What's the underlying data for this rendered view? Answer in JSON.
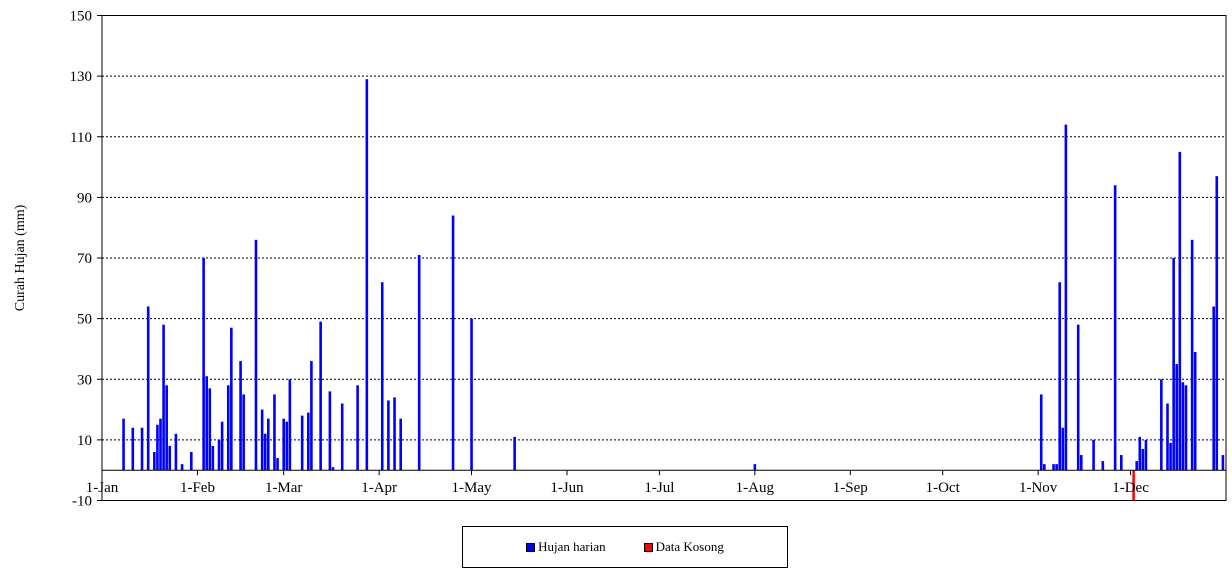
{
  "chart_data": {
    "type": "bar",
    "ylabel": "Curah Hujan (mm)",
    "ylim": [
      -10,
      150
    ],
    "y_ticks": [
      "-10",
      "10",
      "30",
      "50",
      "70",
      "90",
      "110",
      "130",
      "150"
    ],
    "x_ticks": [
      "1-Jan",
      "1-Feb",
      "1-Mar",
      "1-Apr",
      "1-May",
      "1-Jun",
      "1-Jul",
      "1-Aug",
      "1-Sep",
      "1-Oct",
      "1-Nov",
      "1-Dec"
    ],
    "x_unit": "day of year",
    "xlim": [
      1,
      366
    ],
    "gridlines": "horizontal",
    "legend_position": "bottom",
    "series": [
      {
        "name": "Hujan harian",
        "color": "#0000ff",
        "points": [
          [
            8,
            17
          ],
          [
            11,
            14
          ],
          [
            14,
            14
          ],
          [
            16,
            54
          ],
          [
            18,
            6
          ],
          [
            19,
            15
          ],
          [
            20,
            17
          ],
          [
            21,
            48
          ],
          [
            22,
            28
          ],
          [
            23,
            8
          ],
          [
            25,
            12
          ],
          [
            27,
            2
          ],
          [
            30,
            6
          ],
          [
            34,
            70
          ],
          [
            35,
            31
          ],
          [
            36,
            27
          ],
          [
            37,
            8
          ],
          [
            39,
            10
          ],
          [
            40,
            16
          ],
          [
            42,
            28
          ],
          [
            43,
            47
          ],
          [
            46,
            36
          ],
          [
            47,
            25
          ],
          [
            51,
            76
          ],
          [
            53,
            20
          ],
          [
            54,
            12
          ],
          [
            55,
            17
          ],
          [
            57,
            25
          ],
          [
            58,
            4
          ],
          [
            60,
            17
          ],
          [
            61,
            16
          ],
          [
            62,
            30
          ],
          [
            66,
            18
          ],
          [
            68,
            19
          ],
          [
            69,
            36
          ],
          [
            72,
            49
          ],
          [
            75,
            26
          ],
          [
            76,
            1
          ],
          [
            79,
            22
          ],
          [
            84,
            28
          ],
          [
            87,
            129
          ],
          [
            92,
            62
          ],
          [
            94,
            23
          ],
          [
            96,
            24
          ],
          [
            98,
            17
          ],
          [
            104,
            71
          ],
          [
            115,
            84
          ],
          [
            121,
            50
          ],
          [
            135,
            11
          ],
          [
            213,
            2
          ],
          [
            306,
            25
          ],
          [
            307,
            2
          ],
          [
            310,
            2
          ],
          [
            311,
            2
          ],
          [
            312,
            62
          ],
          [
            313,
            14
          ],
          [
            314,
            114
          ],
          [
            318,
            48
          ],
          [
            319,
            5
          ],
          [
            323,
            10
          ],
          [
            326,
            3
          ],
          [
            330,
            94
          ],
          [
            332,
            5
          ],
          [
            337,
            3
          ],
          [
            338,
            11
          ],
          [
            339,
            7
          ],
          [
            340,
            10
          ],
          [
            345,
            30
          ],
          [
            347,
            22
          ],
          [
            348,
            9
          ],
          [
            349,
            70
          ],
          [
            350,
            35
          ],
          [
            351,
            105
          ],
          [
            352,
            29
          ],
          [
            353,
            28
          ],
          [
            355,
            76
          ],
          [
            356,
            39
          ],
          [
            362,
            54
          ],
          [
            363,
            97
          ],
          [
            365,
            5
          ]
        ]
      },
      {
        "name": "Data Kosong",
        "color": "#ff0000",
        "points": [
          [
            336,
            -10
          ]
        ]
      }
    ]
  }
}
